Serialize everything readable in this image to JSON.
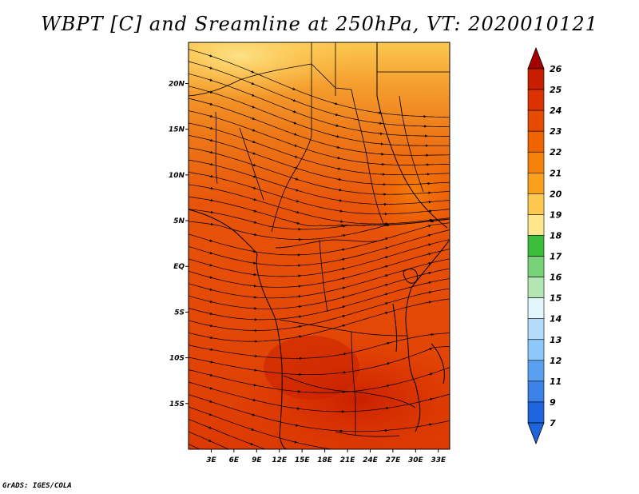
{
  "title": "WBPT [C] and Sreamline at 250hPa, VT: 2020010121",
  "credit": "GrADS: IGES/COLA",
  "map": {
    "lat_labels": [
      "20N",
      "15N",
      "10N",
      "5N",
      "EQ",
      "5S",
      "10S",
      "15S"
    ],
    "lon_labels": [
      "3E",
      "6E",
      "9E",
      "12E",
      "15E",
      "18E",
      "21E",
      "24E",
      "27E",
      "30E",
      "33E"
    ],
    "lon_range": [
      0,
      34.5
    ],
    "lat_range": [
      -20,
      24.5
    ],
    "field": "Wet-bulb potential temperature at 250hPa with streamlines"
  },
  "colorbar": {
    "labels": [
      "26",
      "25",
      "24",
      "23",
      "22",
      "21",
      "20",
      "19",
      "18",
      "17",
      "16",
      "15",
      "14",
      "13",
      "12",
      "11",
      "9",
      "7"
    ],
    "colors": [
      "#a50000",
      "#c81e00",
      "#dc3200",
      "#e64b00",
      "#f06400",
      "#f5820a",
      "#faa01e",
      "#fcc850",
      "#fde68c",
      "#3cbe3c",
      "#78d278",
      "#b4e6b4",
      "#e1f5fa",
      "#b4dcfa",
      "#8cc8fa",
      "#5aa0f0",
      "#3c82e6",
      "#1e64dc"
    ],
    "top_arrow_color": "#a50000",
    "bottom_arrow_color": "#1e64dc"
  }
}
